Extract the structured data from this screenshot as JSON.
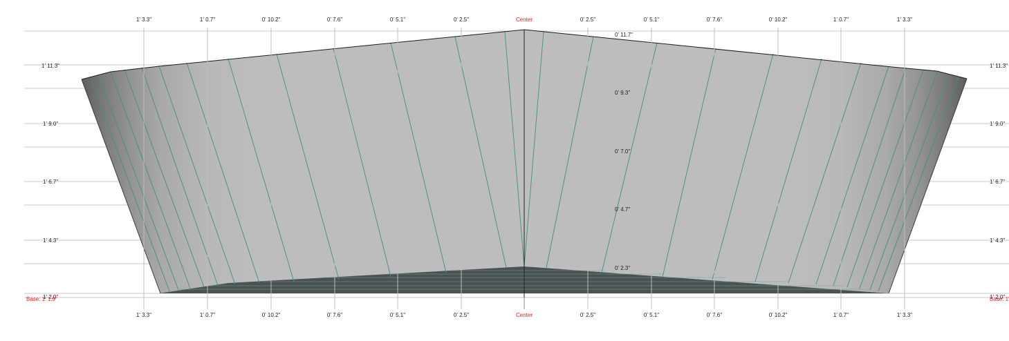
{
  "colors": {
    "grid": "#c0c0c0",
    "label": "#222222",
    "accent_red": "#e8211d",
    "plate_light": "#bdbdbd",
    "plate_dark": "#5e5e5e",
    "frame_line": "#3f8f86",
    "bottom_fill": "#4a4f50",
    "outline": "#000000"
  },
  "station_labels": {
    "left": [
      "1' 3.3\"",
      "1' 0.7\"",
      "0' 10.2\"",
      "0' 7.6\"",
      "0' 5.1\"",
      "0' 2.5\""
    ],
    "center": "Center",
    "right": [
      "0' 2.5\"",
      "0' 5.1\"",
      "0' 7.6\"",
      "0' 10.2\"",
      "1' 0.7\"",
      "1' 3.3\""
    ]
  },
  "height_labels": [
    "1' 11.3\"",
    "1' 9.0\"",
    "1' 6.7\"",
    "1' 4.3\"",
    "1' 2.0\""
  ],
  "base_label": "Base: 1' 1.9\"",
  "center_height_labels": [
    "0' 11.7\"",
    "0' 9.3\"",
    "0' 7.0\"",
    "0' 4.7\"",
    "0' 2.3\""
  ]
}
